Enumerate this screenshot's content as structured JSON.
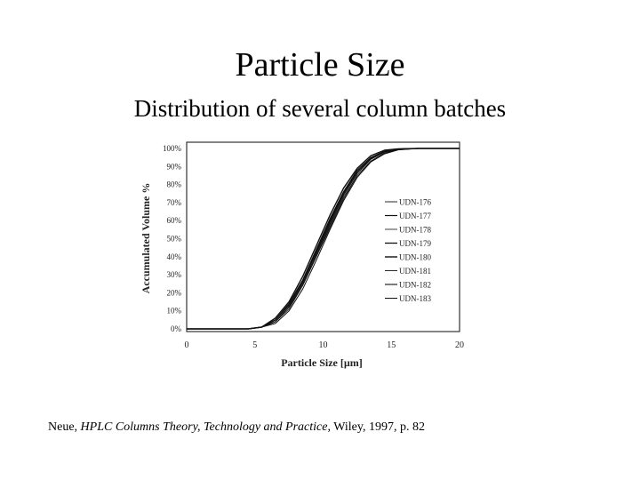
{
  "slide": {
    "title": "Particle Size",
    "subtitle": "Distribution of several column batches",
    "citation": {
      "author": "Neue, ",
      "book": "HPLC Columns Theory, Technology and Practice",
      "rest": ", Wiley, 1997, p. 82"
    }
  },
  "chart_data": {
    "type": "line",
    "xlabel": "Particle Size [µm]",
    "ylabel": "Accumulated Volume %",
    "xlim": [
      0,
      20
    ],
    "ylim": [
      0,
      100
    ],
    "x_ticks": [
      "0",
      "5",
      "10",
      "15",
      "20"
    ],
    "y_ticks": [
      "0%",
      "10%",
      "20%",
      "30%",
      "40%",
      "50%",
      "60%",
      "70%",
      "80%",
      "90%",
      "100%"
    ],
    "grid": false,
    "legend_position": "right",
    "x": [
      5.5,
      6.5,
      7.5,
      8.5,
      9.5,
      10.5,
      11.5,
      12.5,
      13.5,
      14.5,
      15.5,
      17,
      18.5,
      20
    ],
    "series": [
      {
        "name": "UDN-176",
        "values": [
          1,
          4,
          12,
          25,
          41,
          58,
          74,
          86,
          94,
          98,
          99.5,
          100,
          100,
          100
        ]
      },
      {
        "name": "UDN-177",
        "values": [
          1,
          5,
          14,
          27,
          44,
          61,
          76,
          88,
          95,
          98.5,
          99.7,
          100,
          100,
          100
        ]
      },
      {
        "name": "UDN-178",
        "values": [
          1,
          4,
          11,
          24,
          40,
          57,
          73,
          85,
          93,
          97.5,
          99.4,
          100,
          100,
          100
        ]
      },
      {
        "name": "UDN-179",
        "values": [
          1,
          5,
          13,
          26,
          43,
          60,
          75,
          87,
          94.5,
          98.3,
          99.6,
          100,
          100,
          100
        ]
      },
      {
        "name": "UDN-180",
        "values": [
          1,
          6,
          15,
          29,
          46,
          63,
          78,
          89,
          96,
          99,
          99.8,
          100,
          100,
          100
        ]
      },
      {
        "name": "UDN-181",
        "values": [
          1,
          4,
          12,
          24,
          40,
          56,
          72,
          85,
          93,
          97.5,
          99.3,
          100,
          100,
          100
        ]
      },
      {
        "name": "UDN-182",
        "values": [
          1,
          5,
          13,
          26,
          42,
          59,
          75,
          87,
          94.5,
          98.2,
          99.6,
          100,
          100,
          100
        ]
      },
      {
        "name": "UDN-183",
        "values": [
          1,
          3,
          10,
          22,
          38,
          55,
          71,
          84,
          92.5,
          97,
          99.2,
          100,
          100,
          100
        ]
      }
    ]
  }
}
